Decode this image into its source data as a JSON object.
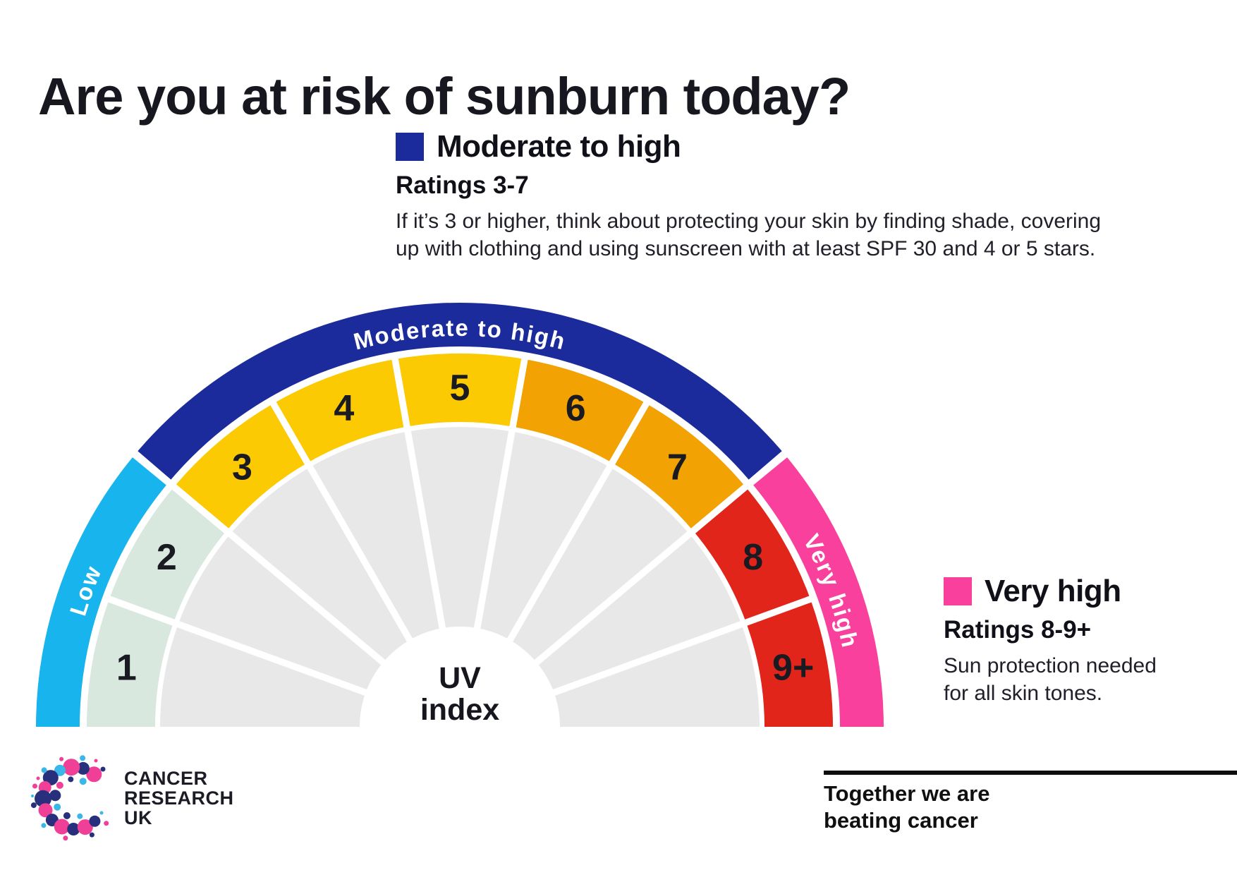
{
  "title": "Are you at risk of sunburn today?",
  "legends": {
    "moderate": {
      "swatch_color": "#1B2B9B",
      "heading": "Moderate to high",
      "subheading": "Ratings 3-7",
      "body_lines": [
        "If it’s 3 or higher, think about protecting your skin by finding shade, covering",
        "up with clothing and using sunscreen with at least SPF 30 and 4 or 5 stars."
      ]
    },
    "very_high": {
      "swatch_color": "#F8409C",
      "heading": "Very high",
      "subheading": "Ratings 8-9+",
      "body_lines": [
        "Sun protection needed",
        "for all skin tones."
      ]
    }
  },
  "chart_data": {
    "type": "gauge",
    "title": "UV index",
    "center_label_lines": [
      "UV",
      "index"
    ],
    "segments": [
      {
        "value": "1",
        "category": "Low",
        "color": "#D9E8DF"
      },
      {
        "value": "2",
        "category": "Low",
        "color": "#D9E8DF"
      },
      {
        "value": "3",
        "category": "Moderate to high",
        "color": "#FBCA02"
      },
      {
        "value": "4",
        "category": "Moderate to high",
        "color": "#FBCA02"
      },
      {
        "value": "5",
        "category": "Moderate to high",
        "color": "#FBCA02"
      },
      {
        "value": "6",
        "category": "Moderate to high",
        "color": "#F2A202"
      },
      {
        "value": "7",
        "category": "Moderate to high",
        "color": "#F2A202"
      },
      {
        "value": "8",
        "category": "Very high",
        "color": "#E2251B"
      },
      {
        "value": "9+",
        "category": "Very high",
        "color": "#E2251B"
      }
    ],
    "bands": [
      {
        "label": "Low",
        "segment_span": [
          1,
          2
        ],
        "color": "#18B4ED"
      },
      {
        "label": "Moderate to high",
        "segment_span": [
          3,
          7
        ],
        "color": "#1B2B9B"
      },
      {
        "label": "Very high",
        "segment_span": [
          8,
          9
        ],
        "color": "#F8409C"
      }
    ],
    "wedge_color": "#E8E8E8",
    "number_color": "#1A1A22",
    "band_label_color": "#FFFFFF"
  },
  "footer": {
    "logo_lines": [
      "CANCER",
      "RESEARCH",
      "UK"
    ],
    "tagline_lines": [
      "Together we are",
      "beating cancer"
    ]
  }
}
